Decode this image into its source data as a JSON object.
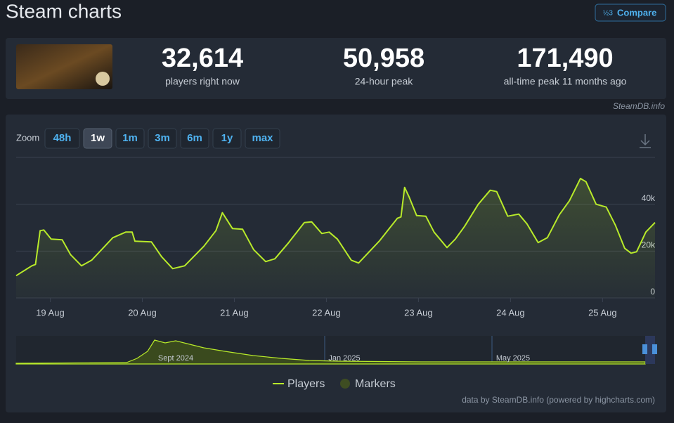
{
  "header": {
    "title": "Steam charts",
    "compare": "Compare"
  },
  "stats": [
    {
      "value": "32,614",
      "label": "players right now"
    },
    {
      "value": "50,958",
      "label": "24-hour peak"
    },
    {
      "value": "171,490",
      "label": "all-time peak 11 months ago"
    }
  ],
  "source": "SteamDB.info",
  "zoom": {
    "label": "Zoom",
    "options": [
      "48h",
      "1w",
      "1m",
      "3m",
      "6m",
      "1y",
      "max"
    ],
    "active": "1w"
  },
  "navigator": {
    "labels": [
      "Sept 2024",
      "Jan 2025",
      "May 2025"
    ]
  },
  "credits": "data by SteamDB.info (powered by highcharts.com)",
  "chart_data": {
    "type": "line",
    "x": [
      18.63,
      18.8,
      18.84,
      18.89,
      18.93,
      19.01,
      19.13,
      19.22,
      19.34,
      19.45,
      19.68,
      19.82,
      19.89,
      19.92,
      20.1,
      20.21,
      20.33,
      20.46,
      20.67,
      20.8,
      20.87,
      20.98,
      21.09,
      21.21,
      21.34,
      21.44,
      21.59,
      21.76,
      21.84,
      21.95,
      22.03,
      22.12,
      22.27,
      22.35,
      22.58,
      22.77,
      22.81,
      22.85,
      22.9,
      22.98,
      23.08,
      23.17,
      23.31,
      23.4,
      23.5,
      23.65,
      23.78,
      23.85,
      23.97,
      24.09,
      24.18,
      24.3,
      24.4,
      24.53,
      24.64,
      24.76,
      24.82,
      24.93,
      25.04,
      25.14,
      25.24,
      25.31,
      25.37,
      25.47,
      25.57
    ],
    "series": [
      {
        "name": "Players",
        "color": "#b8ea2a",
        "values": [
          9500,
          13700,
          14300,
          28700,
          29000,
          25100,
          24800,
          18500,
          13700,
          16100,
          25700,
          28100,
          28100,
          24200,
          23900,
          17600,
          12500,
          13700,
          22100,
          28700,
          36400,
          29600,
          29300,
          20600,
          15500,
          16700,
          23600,
          32200,
          32500,
          27500,
          28100,
          25100,
          16100,
          14900,
          24500,
          34000,
          34600,
          47200,
          43000,
          35200,
          34900,
          28100,
          21500,
          25100,
          30500,
          40000,
          46000,
          45400,
          34900,
          35800,
          31600,
          23600,
          25700,
          35500,
          41500,
          51000,
          49600,
          40000,
          38800,
          31000,
          21200,
          19100,
          19700,
          28100,
          32200
        ]
      }
    ],
    "markers_legend": "Markers",
    "xlim": [
      18.63,
      25.57
    ],
    "xticks": [
      {
        "value": 19,
        "label": "19 Aug"
      },
      {
        "value": 20,
        "label": "20 Aug"
      },
      {
        "value": 21,
        "label": "21 Aug"
      },
      {
        "value": 22,
        "label": "22 Aug"
      },
      {
        "value": 23,
        "label": "23 Aug"
      },
      {
        "value": 24,
        "label": "24 Aug"
      },
      {
        "value": 25,
        "label": "25 Aug"
      }
    ],
    "ylim": [
      0,
      60000
    ],
    "yticks": [
      0,
      {
        "value": 20000,
        "label": "20k"
      },
      {
        "value": 40000,
        "label": "40k"
      }
    ],
    "grid": true
  }
}
